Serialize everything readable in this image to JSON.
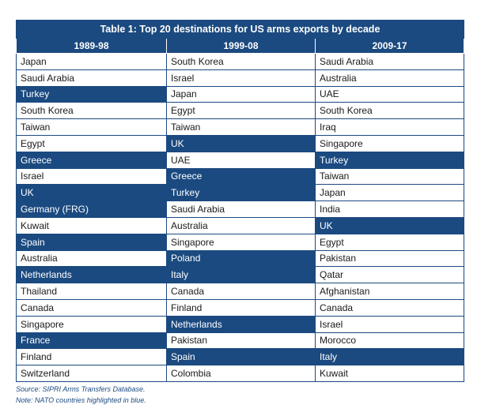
{
  "table": {
    "title": "Table 1: Top 20 destinations for US arms exports by decade",
    "columns": [
      "1989-98",
      "1999-08",
      "2009-17"
    ],
    "highlight_color": "#1b4a80",
    "rows": [
      [
        {
          "name": "Japan",
          "nato": false
        },
        {
          "name": "South Korea",
          "nato": false
        },
        {
          "name": "Saudi Arabia",
          "nato": false
        }
      ],
      [
        {
          "name": "Saudi Arabia",
          "nato": false
        },
        {
          "name": "Israel",
          "nato": false
        },
        {
          "name": "Australia",
          "nato": false
        }
      ],
      [
        {
          "name": "Turkey",
          "nato": true
        },
        {
          "name": "Japan",
          "nato": false
        },
        {
          "name": "UAE",
          "nato": false
        }
      ],
      [
        {
          "name": "South Korea",
          "nato": false
        },
        {
          "name": "Egypt",
          "nato": false
        },
        {
          "name": "South Korea",
          "nato": false
        }
      ],
      [
        {
          "name": "Taiwan",
          "nato": false
        },
        {
          "name": "Taiwan",
          "nato": false
        },
        {
          "name": "Iraq",
          "nato": false
        }
      ],
      [
        {
          "name": "Egypt",
          "nato": false
        },
        {
          "name": "UK",
          "nato": true
        },
        {
          "name": "Singapore",
          "nato": false
        }
      ],
      [
        {
          "name": "Greece",
          "nato": true
        },
        {
          "name": "UAE",
          "nato": false
        },
        {
          "name": "Turkey",
          "nato": true
        }
      ],
      [
        {
          "name": "Israel",
          "nato": false
        },
        {
          "name": "Greece",
          "nato": true
        },
        {
          "name": "Taiwan",
          "nato": false
        }
      ],
      [
        {
          "name": "UK",
          "nato": true
        },
        {
          "name": "Turkey",
          "nato": true
        },
        {
          "name": "Japan",
          "nato": false
        }
      ],
      [
        {
          "name": "Germany (FRG)",
          "nato": true
        },
        {
          "name": "Saudi Arabia",
          "nato": false
        },
        {
          "name": "India",
          "nato": false
        }
      ],
      [
        {
          "name": "Kuwait",
          "nato": false
        },
        {
          "name": "Australia",
          "nato": false
        },
        {
          "name": "UK",
          "nato": true
        }
      ],
      [
        {
          "name": "Spain",
          "nato": true
        },
        {
          "name": "Singapore",
          "nato": false
        },
        {
          "name": "Egypt",
          "nato": false
        }
      ],
      [
        {
          "name": "Australia",
          "nato": false
        },
        {
          "name": "Poland",
          "nato": true
        },
        {
          "name": "Pakistan",
          "nato": false
        }
      ],
      [
        {
          "name": "Netherlands",
          "nato": true
        },
        {
          "name": "Italy",
          "nato": true
        },
        {
          "name": "Qatar",
          "nato": false
        }
      ],
      [
        {
          "name": "Thailand",
          "nato": false
        },
        {
          "name": "Canada",
          "nato": false
        },
        {
          "name": "Afghanistan",
          "nato": false
        }
      ],
      [
        {
          "name": "Canada",
          "nato": false
        },
        {
          "name": "Finland",
          "nato": false
        },
        {
          "name": "Canada",
          "nato": false
        }
      ],
      [
        {
          "name": "Singapore",
          "nato": false
        },
        {
          "name": "Netherlands",
          "nato": true
        },
        {
          "name": "Israel",
          "nato": false
        }
      ],
      [
        {
          "name": "France",
          "nato": true
        },
        {
          "name": "Pakistan",
          "nato": false
        },
        {
          "name": "Morocco",
          "nato": false
        }
      ],
      [
        {
          "name": "Finland",
          "nato": false
        },
        {
          "name": "Spain",
          "nato": true
        },
        {
          "name": "Italy",
          "nato": true
        }
      ],
      [
        {
          "name": "Switzerland",
          "nato": false
        },
        {
          "name": "Colombia",
          "nato": false
        },
        {
          "name": "Kuwait",
          "nato": false
        }
      ]
    ]
  },
  "footer": {
    "source": "Source: SIPRI Arms Transfers Database.",
    "note": "Note: NATO countries highlighted in blue."
  }
}
